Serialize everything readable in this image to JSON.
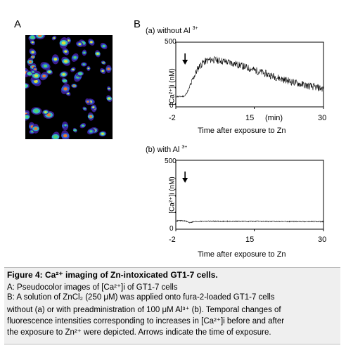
{
  "panels": {
    "a": {
      "letter": "A"
    },
    "b": {
      "letter": "B"
    }
  },
  "chart_data": [
    {
      "type": "line",
      "title": "(a) without Al",
      "title_sup": "3+",
      "ylabel": "[Ca²⁺]i (nM)",
      "xlabel": "Time after exposure to Zn",
      "x_tick_labels": [
        "-2",
        "15",
        "30"
      ],
      "x_unit_label": "(min)",
      "y_tick_labels": [
        "0",
        "500"
      ],
      "xlim": [
        -2,
        30
      ],
      "ylim": [
        0,
        500
      ],
      "arrow_at_min": 0,
      "series": [
        {
          "x": [
            -2,
            -1,
            0,
            1,
            2,
            3,
            4,
            5,
            6,
            8,
            10,
            12,
            15,
            18,
            21,
            24,
            27,
            30
          ],
          "values": [
            80,
            78,
            85,
            150,
            240,
            310,
            345,
            360,
            365,
            355,
            340,
            320,
            285,
            250,
            215,
            185,
            160,
            140
          ]
        }
      ]
    },
    {
      "type": "line",
      "title": "(b) with Al",
      "title_sup": "3+",
      "ylabel": "[Ca²⁺]i (nM)",
      "xlabel": "Time after exposure to Zn",
      "x_tick_labels": [
        "-2",
        "15",
        "30"
      ],
      "x_unit_label": "",
      "y_tick_labels": [
        "0",
        "500"
      ],
      "xlim": [
        -2,
        30
      ],
      "ylim": [
        0,
        500
      ],
      "arrow_at_min": 0,
      "series": [
        {
          "x": [
            -2,
            -1,
            0,
            1,
            2,
            4,
            8,
            15,
            22,
            30
          ],
          "values": [
            60,
            62,
            60,
            48,
            55,
            58,
            57,
            57,
            56,
            55
          ]
        }
      ]
    }
  ],
  "caption": {
    "title": "Figure 4: Ca²⁺ imaging of Zn-intoxicated GT1-7 cells.",
    "line_a": "A: Pseudocolor images of [Ca²⁺]i of GT1-7 cells",
    "line_b1": "B: A solution of ZnCl₂ (250 μM) was applied onto fura-2-loaded GT1-7 cells",
    "line_b2": "without (a) or with preadministration of 100 μM Al³⁺ (b). Temporal changes of",
    "line_b3": "fluorescence intensities corresponding to increases in [Ca²⁺]i before and after",
    "line_b4": "the exposure to Zn²⁺ were depicted. Arrows indicate the time of exposure."
  }
}
